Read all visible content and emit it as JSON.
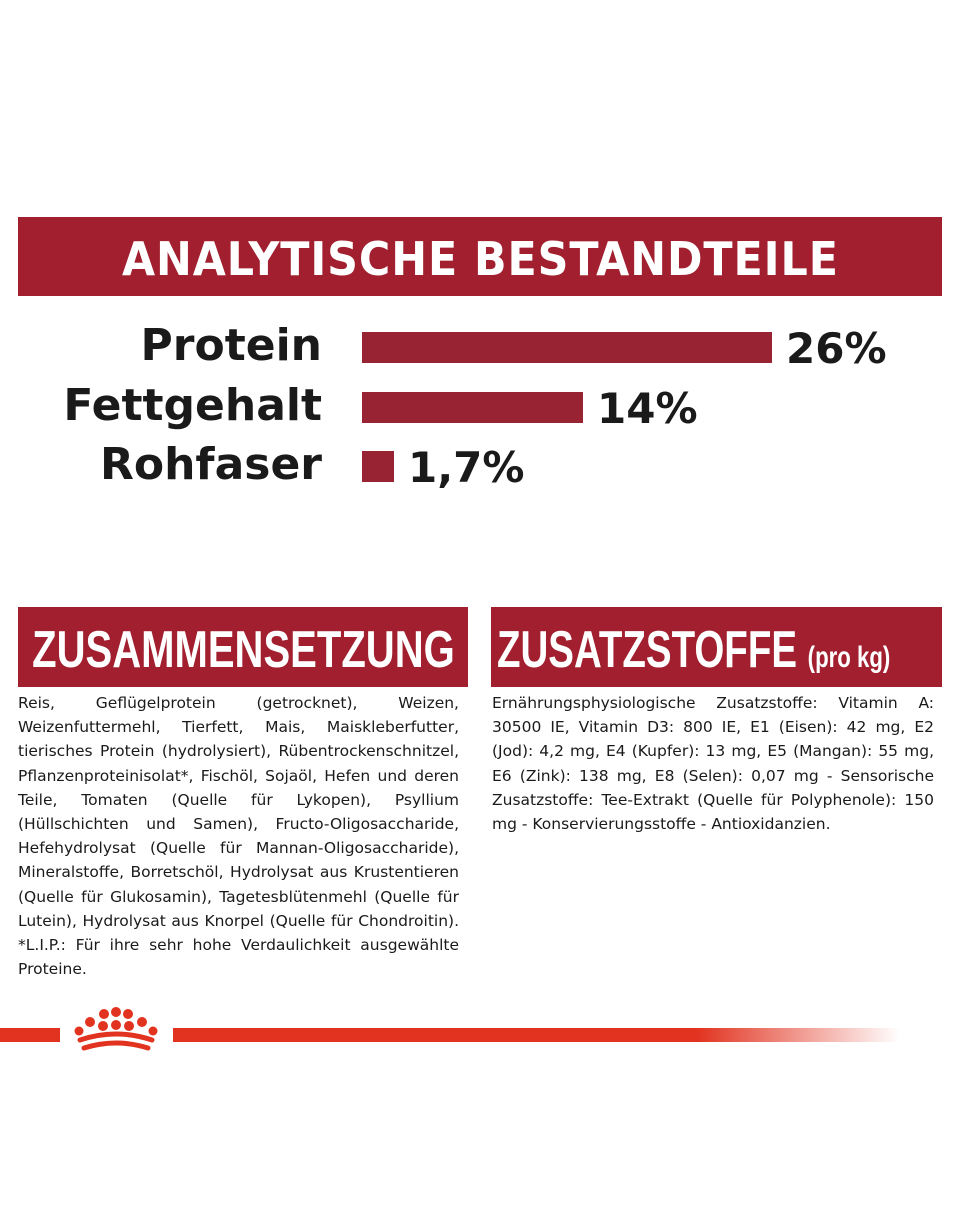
{
  "banner": {
    "title": "ANALYTISCHE BESTANDTEILE"
  },
  "chart_data": {
    "type": "bar",
    "orientation": "horizontal",
    "categories": [
      "Protein",
      "Fettgehalt",
      "Rohfaser"
    ],
    "values": [
      26,
      14,
      1.7
    ],
    "value_labels": [
      "26%",
      "14%",
      "1,7%"
    ],
    "unit": "%",
    "bar_color": "#982333"
  },
  "zusammensetzung": {
    "title": "ZUSAMMENSETZUNG",
    "text": "Reis, Geflügelprotein (getrocknet), Weizen, Weizenfuttermehl, Tierfett, Mais, Maiskleberfutter, tierisches Protein (hydrolysiert), Rübentrockenschnitzel, Pflanzenproteinisolat*, Fischöl, Sojaöl, Hefen und deren Teile, Tomaten (Quelle für Lykopen), Psyllium (Hüllschichten und Samen), Fructo-Oligosaccharide, Hefehydrolysat (Quelle für Mannan-Oligosaccharide), Mineralstoffe, Borretschöl, Hydrolysat aus Krustentieren (Quelle für Glukosamin), Tagetesblütenmehl (Quelle für Lutein), Hydrolysat aus Knorpel (Quelle für Chondroitin). *L.I.P.: Für ihre sehr hohe Verdaulichkeit ausgewählte Proteine."
  },
  "zusatzstoffe": {
    "title": "ZUSATZSTOFFE",
    "title_suffix": "(pro kg)",
    "text": "Ernährungsphysiologische Zusatzstoffe: Vitamin A: 30500 IE, Vitamin D3: 800 IE, E1 (Eisen): 42 mg, E2 (Jod): 4,2 mg, E4 (Kupfer): 13 mg, E5 (Mangan): 55 mg, E6 (Zink): 138 mg, E8 (Selen): 0,07 mg - Sensorische Zusatzstoffe: Tee-Extrakt (Quelle für Polyphenole): 150 mg - Konservierungsstoffe - Antioxidanzien."
  },
  "footer": {
    "logo_icon": "crown-icon",
    "accent_color": "#e1331f"
  }
}
